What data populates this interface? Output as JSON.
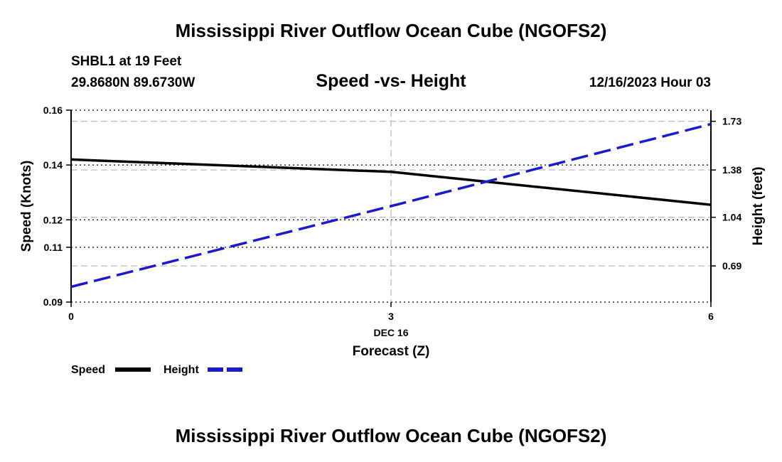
{
  "page": {
    "main_title": "Mississippi River Outflow Ocean Cube (NGOFS2)",
    "bottom_title": "Mississippi River Outflow Ocean Cube (NGOFS2)"
  },
  "header": {
    "station": "SHBL1 at 19 Feet",
    "coords": "29.8680N  89.6730W",
    "chart_title": "Speed -vs- Height",
    "datetime": "12/16/2023 Hour 03"
  },
  "colors": {
    "speed": "#000000",
    "height": "#1a1acc",
    "grid": "#bbbbbb"
  },
  "chart_data": {
    "type": "line",
    "title": "Speed -vs- Height",
    "xlabel": "Forecast (Z)",
    "xlabel_date": "DEC 16",
    "x": [
      0,
      3,
      6
    ],
    "xlim": [
      0,
      6
    ],
    "x_ticks": [
      0,
      3,
      6
    ],
    "x_tick_labels": [
      "0",
      "3",
      "6"
    ],
    "ylabel_left": "Speed (Knots)",
    "ylim_left": [
      0.09,
      0.16
    ],
    "y_ticks_left": [
      0.09,
      0.11,
      0.12,
      0.14,
      0.16
    ],
    "y_tick_labels_left": [
      "0.09",
      "0.11",
      "0.12",
      "0.14",
      "0.16"
    ],
    "ylabel_right": "Height (feet)",
    "ylim_right": [
      0.43,
      1.81
    ],
    "y_ticks_right": [
      0.69,
      1.04,
      1.38,
      1.73
    ],
    "y_tick_labels_right": [
      "0.69",
      "1.04",
      "1.38",
      "1.73"
    ],
    "series": [
      {
        "name": "Speed",
        "axis": "left",
        "style": "solid",
        "x": [
          0,
          3,
          6
        ],
        "values": [
          0.142,
          0.1375,
          0.1255
        ]
      },
      {
        "name": "Height",
        "axis": "right",
        "style": "dashed",
        "x": [
          0,
          3,
          6
        ],
        "values": [
          0.54,
          1.12,
          1.71
        ]
      }
    ],
    "legend": [
      "Speed",
      "Height"
    ]
  }
}
